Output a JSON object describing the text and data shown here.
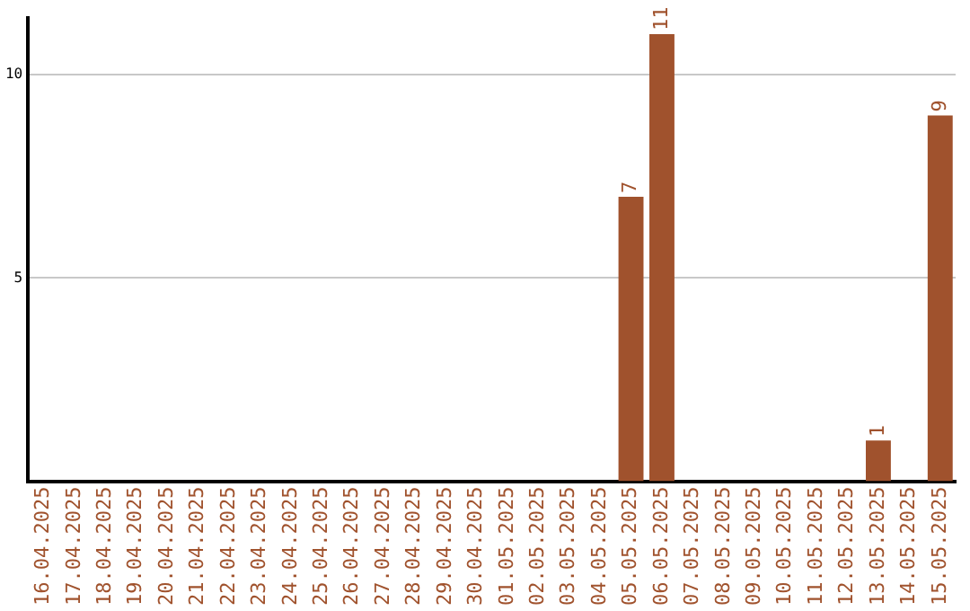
{
  "chart_data": {
    "type": "bar",
    "categories": [
      "16.04.2025",
      "17.04.2025",
      "18.04.2025",
      "19.04.2025",
      "20.04.2025",
      "21.04.2025",
      "22.04.2025",
      "23.04.2025",
      "24.04.2025",
      "25.04.2025",
      "26.04.2025",
      "27.04.2025",
      "28.04.2025",
      "29.04.2025",
      "30.04.2025",
      "01.05.2025",
      "02.05.2025",
      "03.05.2025",
      "04.05.2025",
      "05.05.2025",
      "06.05.2025",
      "07.05.2025",
      "08.05.2025",
      "09.05.2025",
      "10.05.2025",
      "11.05.2025",
      "12.05.2025",
      "13.05.2025",
      "14.05.2025",
      "15.05.2025"
    ],
    "values": [
      0,
      0,
      0,
      0,
      0,
      0,
      0,
      0,
      0,
      0,
      0,
      0,
      0,
      0,
      0,
      0,
      0,
      0,
      0,
      7,
      11,
      0,
      0,
      0,
      0,
      0,
      0,
      1,
      0,
      9
    ],
    "value_labels": [
      null,
      null,
      null,
      null,
      null,
      null,
      null,
      null,
      null,
      null,
      null,
      null,
      null,
      null,
      null,
      null,
      null,
      null,
      null,
      "7",
      "11",
      null,
      null,
      null,
      null,
      null,
      null,
      "1",
      null,
      "9"
    ],
    "color": "#a0522d",
    "ylim": [
      0,
      11.4
    ],
    "yticks": [
      5,
      10
    ],
    "grid": "y",
    "legend": false
  }
}
